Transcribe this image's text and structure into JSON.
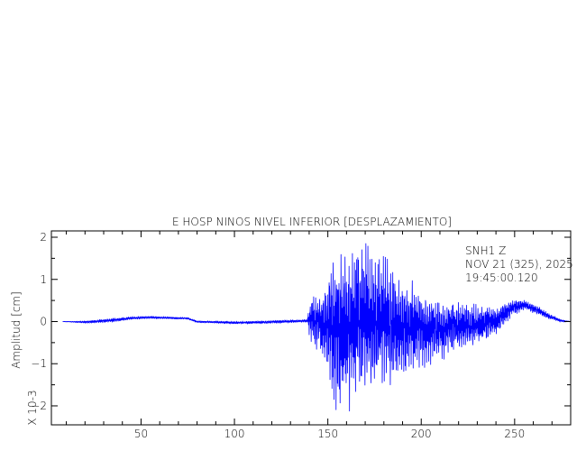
{
  "chart_data": {
    "type": "line",
    "title": "E HOSP NINOS NIVEL INFERIOR [DESPLAZAMIENTO]",
    "xlabel": "",
    "ylabel": "Amplitud [cm]",
    "y_scale_note": "X 10-3",
    "xlim": [
      2,
      280
    ],
    "ylim": [
      -2.45,
      2.15
    ],
    "x_ticks": [
      50,
      100,
      150,
      200,
      250
    ],
    "y_ticks": [
      -2,
      -1,
      0,
      1,
      2
    ],
    "annotation": [
      "SNH1   Z",
      "NOV 21 (325), 2025",
      "19:45:00.120"
    ],
    "series": [
      {
        "color": "#0000ff",
        "envelope": {
          "x": [
            8,
            20,
            35,
            45,
            55,
            65,
            75,
            80,
            100,
            120,
            139,
            141,
            145,
            150,
            154,
            157,
            160,
            163,
            167,
            172,
            177,
            182,
            188,
            195,
            200,
            210,
            220,
            230,
            240,
            248,
            252,
            256,
            262,
            268,
            275,
            280
          ],
          "upper": [
            0.0,
            0.02,
            0.08,
            0.12,
            0.14,
            0.12,
            0.1,
            0.02,
            0.01,
            0.03,
            0.05,
            0.75,
            0.7,
            1.1,
            2.0,
            1.9,
            2.0,
            1.8,
            2.1,
            1.8,
            1.6,
            1.5,
            1.1,
            1.1,
            0.85,
            0.55,
            0.45,
            0.42,
            0.4,
            0.55,
            0.58,
            0.5,
            0.38,
            0.2,
            0.05,
            0.0
          ],
          "lower": [
            0.0,
            -0.04,
            -0.02,
            0.05,
            0.07,
            0.06,
            0.05,
            -0.03,
            -0.06,
            -0.05,
            -0.02,
            -0.65,
            -0.7,
            -1.3,
            -2.1,
            -2.2,
            -2.15,
            -2.1,
            -1.95,
            -1.9,
            -1.85,
            -1.75,
            -1.5,
            -1.2,
            -1.15,
            -0.95,
            -0.75,
            -0.6,
            -0.3,
            0.1,
            0.2,
            0.25,
            0.15,
            0.05,
            -0.02,
            0.0
          ],
          "mid": [
            0.0,
            -0.01,
            0.03,
            0.08,
            0.1,
            0.09,
            0.075,
            -0.005,
            -0.025,
            -0.01,
            0.015,
            0.05,
            0.0,
            -0.1,
            -0.05,
            -0.15,
            -0.07,
            -0.15,
            0.07,
            -0.05,
            -0.12,
            -0.12,
            -0.2,
            -0.05,
            -0.15,
            -0.2,
            -0.15,
            -0.09,
            0.05,
            0.32,
            0.39,
            0.38,
            0.27,
            0.13,
            0.015,
            0.0
          ]
        }
      }
    ]
  }
}
